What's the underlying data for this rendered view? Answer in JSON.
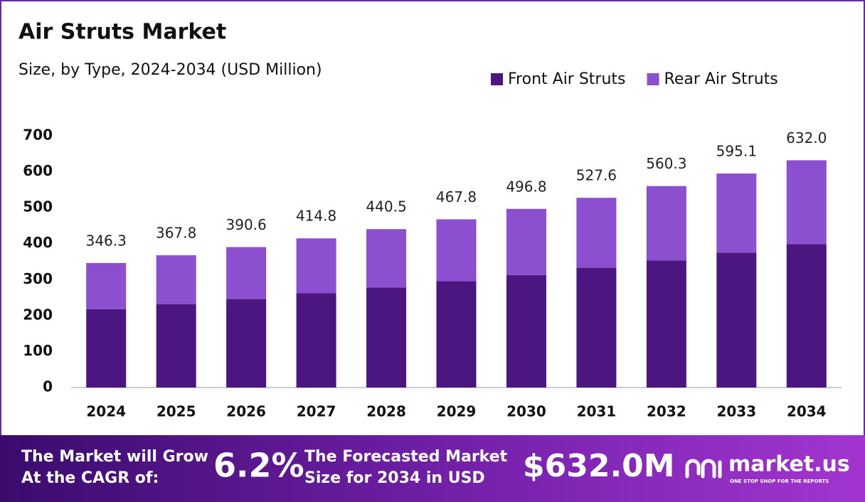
{
  "chart_data": {
    "type": "stacked-bar",
    "title": "Air Struts Market",
    "subtitle": "Size, by Type, 2024-2034 (USD Million)",
    "categories": [
      "2024",
      "2025",
      "2026",
      "2027",
      "2028",
      "2029",
      "2030",
      "2031",
      "2032",
      "2033",
      "2034"
    ],
    "series": [
      {
        "name": "Front Air Struts",
        "color": "#4b1680",
        "values": [
          218,
          232,
          246,
          262,
          278,
          296,
          313,
          333,
          353,
          375,
          399
        ]
      },
      {
        "name": "Rear Air Struts",
        "color": "#8b4fcf",
        "values": [
          128.3,
          135.8,
          144.6,
          152.8,
          162.5,
          171.8,
          183.8,
          194.6,
          207.3,
          220.1,
          233.0
        ]
      }
    ],
    "totals": {
      "values": [
        346.3,
        367.8,
        390.6,
        414.8,
        440.5,
        467.8,
        496.8,
        527.6,
        560.3,
        595.1,
        632.0
      ],
      "value_labels": [
        "346.3",
        "367.8",
        "390.6",
        "414.8",
        "440.5",
        "467.8",
        "496.8",
        "527.6",
        "560.3",
        "595.1",
        "632.0"
      ]
    },
    "ylim": [
      0,
      700
    ],
    "yticks": [
      0,
      100,
      200,
      300,
      400,
      500,
      600,
      700
    ],
    "grid": false,
    "legend": "top-right"
  },
  "footer": {
    "cagr_text": [
      "The Market will Grow",
      "At the CAGR of:"
    ],
    "cagr_value": "6.2%",
    "forecast_text": [
      "The Forecasted Market",
      "Size for 2034 in USD"
    ],
    "forecast_value": "$632.0M",
    "brand": "market.us",
    "tagline": "ONE STOP SHOP FOR THE REPORTS"
  }
}
